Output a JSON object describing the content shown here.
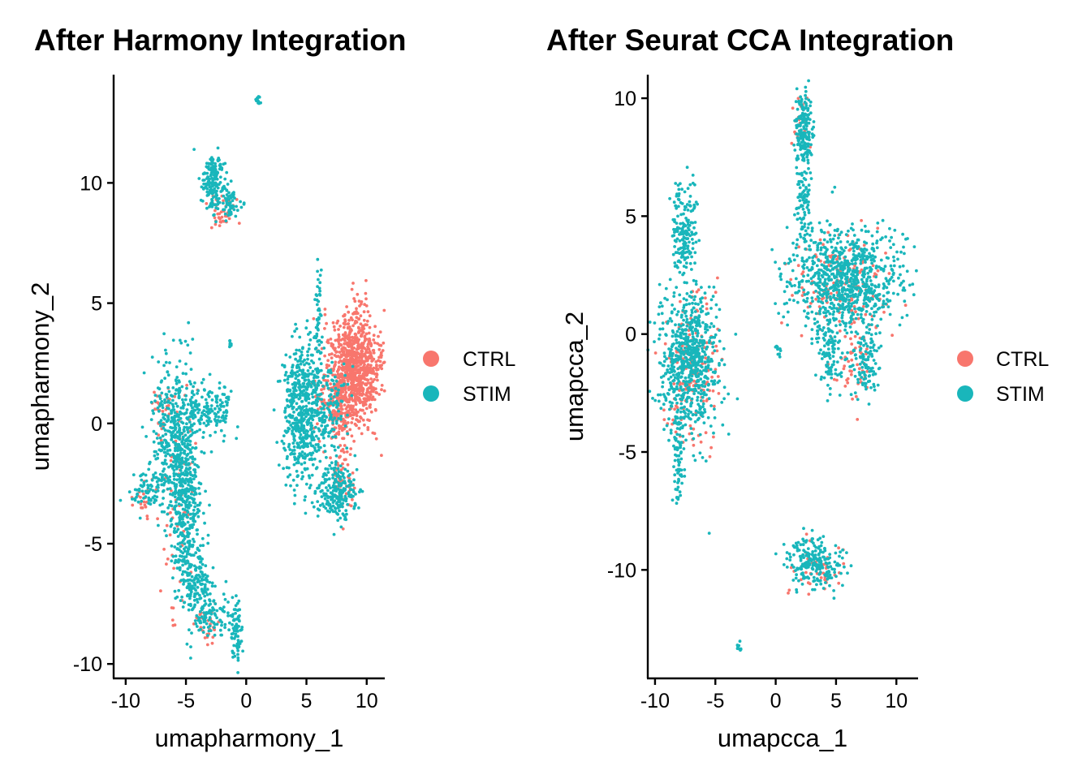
{
  "colors": {
    "CTRL": "#F8766D",
    "STIM": "#19B6BB"
  },
  "chart_data": [
    {
      "type": "scatter",
      "title": "After Harmony Integration",
      "xlabel": "umapharmony_1",
      "ylabel": "umapharmony_2",
      "xlim": [
        -11,
        11.5
      ],
      "ylim": [
        -10.6,
        14.5
      ],
      "xticks": [
        -10,
        -5,
        0,
        5,
        10
      ],
      "yticks": [
        -10,
        -5,
        0,
        5,
        10
      ],
      "xtick_labels": [
        "-10",
        "-5",
        "0",
        "5",
        "10"
      ],
      "ytick_labels": [
        "-10",
        "-5",
        "0",
        "5",
        "10"
      ],
      "legend": {
        "placement": "right",
        "entries": [
          "CTRL",
          "STIM"
        ]
      },
      "grid": false,
      "series": [
        {
          "name": "CTRL",
          "clusters": [
            {
              "cx": 9.0,
              "cy": 2.3,
              "sx": 1.1,
              "sy": 1.2,
              "n": 900
            },
            {
              "cx": 7.5,
              "cy": 0.8,
              "sx": 0.9,
              "sy": 0.8,
              "n": 160
            },
            {
              "cx": 7.9,
              "cy": -2.3,
              "sx": 0.5,
              "sy": 0.8,
              "n": 60
            },
            {
              "cx": -5.5,
              "cy": -3.0,
              "sx": 0.8,
              "sy": 2.8,
              "n": 70
            },
            {
              "cx": -1.8,
              "cy": 8.8,
              "sx": 0.7,
              "sy": 0.4,
              "n": 40
            },
            {
              "cx": -3.2,
              "cy": -8.4,
              "sx": 0.6,
              "sy": 0.4,
              "n": 30
            },
            {
              "cx": -7.0,
              "cy": 0.5,
              "sx": 0.5,
              "sy": 0.5,
              "n": 30
            },
            {
              "cx": -8.5,
              "cy": -3.0,
              "sx": 0.5,
              "sy": 0.3,
              "n": 20
            }
          ]
        },
        {
          "name": "STIM",
          "clusters": [
            {
              "cx": -6.0,
              "cy": -0.5,
              "sx": 0.9,
              "sy": 1.6,
              "n": 420
            },
            {
              "cx": -5.0,
              "cy": -3.8,
              "sx": 0.6,
              "sy": 1.8,
              "n": 380
            },
            {
              "cx": -4.2,
              "cy": -6.5,
              "sx": 0.6,
              "sy": 0.7,
              "n": 120
            },
            {
              "cx": -2.8,
              "cy": -8.0,
              "sx": 0.8,
              "sy": 0.5,
              "n": 100
            },
            {
              "cx": -0.8,
              "cy": -8.7,
              "sx": 0.25,
              "sy": 0.6,
              "n": 70
            },
            {
              "cx": -3.5,
              "cy": 0.5,
              "sx": 1.0,
              "sy": 0.5,
              "n": 110
            },
            {
              "cx": -2.0,
              "cy": 0.8,
              "sx": 0.4,
              "sy": 0.5,
              "n": 40
            },
            {
              "cx": -8.2,
              "cy": -2.8,
              "sx": 0.8,
              "sy": 0.4,
              "n": 70
            },
            {
              "cx": 4.7,
              "cy": 0.4,
              "sx": 0.8,
              "sy": 1.5,
              "n": 520
            },
            {
              "cx": 6.8,
              "cy": 0.8,
              "sx": 0.8,
              "sy": 0.9,
              "n": 140
            },
            {
              "cx": 7.5,
              "cy": -2.8,
              "sx": 0.8,
              "sy": 0.6,
              "n": 230
            },
            {
              "cx": 6.0,
              "cy": 4.3,
              "sx": 0.15,
              "sy": 1.0,
              "n": 50
            },
            {
              "cx": -2.7,
              "cy": 10.0,
              "sx": 0.5,
              "sy": 0.6,
              "n": 170
            },
            {
              "cx": -1.3,
              "cy": 9.1,
              "sx": 0.4,
              "sy": 0.3,
              "n": 60
            },
            {
              "cx": 1.0,
              "cy": 13.4,
              "sx": 0.1,
              "sy": 0.1,
              "n": 12
            },
            {
              "cx": -1.3,
              "cy": 3.3,
              "sx": 0.1,
              "sy": 0.15,
              "n": 8
            }
          ]
        }
      ]
    },
    {
      "type": "scatter",
      "title": "After Seurat CCA Integration",
      "xlabel": "umapcca_1",
      "ylabel": "umapcca_2",
      "xlim": [
        -10.6,
        11.8
      ],
      "ylim": [
        -14.6,
        11.0
      ],
      "xticks": [
        -10,
        -5,
        0,
        5,
        10
      ],
      "yticks": [
        -10,
        -5,
        0,
        5,
        10
      ],
      "xtick_labels": [
        "-10",
        "-5",
        "0",
        "5",
        "10"
      ],
      "ytick_labels": [
        "-10",
        "-5",
        "0",
        "5",
        "10"
      ],
      "legend": {
        "placement": "right",
        "entries": [
          "CTRL",
          "STIM"
        ]
      },
      "grid": false,
      "series": [
        {
          "name": "CTRL",
          "clusters": [
            {
              "cx": -7.0,
              "cy": -1.5,
              "sx": 1.3,
              "sy": 1.6,
              "n": 160
            },
            {
              "cx": 5.5,
              "cy": 2.0,
              "sx": 2.2,
              "sy": 1.1,
              "n": 160
            },
            {
              "cx": 3.5,
              "cy": -10.0,
              "sx": 1.0,
              "sy": 0.6,
              "n": 45
            },
            {
              "cx": 2.0,
              "cy": 8.8,
              "sx": 0.4,
              "sy": 0.6,
              "n": 20
            },
            {
              "cx": 6.5,
              "cy": -1.5,
              "sx": 0.8,
              "sy": 0.7,
              "n": 40
            }
          ]
        },
        {
          "name": "STIM",
          "clusters": [
            {
              "cx": -7.2,
              "cy": -1.2,
              "sx": 1.2,
              "sy": 1.5,
              "n": 700
            },
            {
              "cx": -7.6,
              "cy": 4.3,
              "sx": 0.5,
              "sy": 1.0,
              "n": 180
            },
            {
              "cx": -8.0,
              "cy": -5.5,
              "sx": 0.2,
              "sy": 1.1,
              "n": 70
            },
            {
              "cx": 5.8,
              "cy": 2.3,
              "sx": 2.3,
              "sy": 1.1,
              "n": 850
            },
            {
              "cx": 2.3,
              "cy": 8.5,
              "sx": 0.35,
              "sy": 0.8,
              "n": 180
            },
            {
              "cx": 2.3,
              "cy": 5.5,
              "sx": 0.3,
              "sy": 0.8,
              "n": 80
            },
            {
              "cx": 4.5,
              "cy": -1.0,
              "sx": 0.5,
              "sy": 0.7,
              "n": 90
            },
            {
              "cx": 7.5,
              "cy": -1.2,
              "sx": 0.6,
              "sy": 0.8,
              "n": 110
            },
            {
              "cx": 3.0,
              "cy": -9.7,
              "sx": 1.1,
              "sy": 0.55,
              "n": 220
            },
            {
              "cx": 0.2,
              "cy": -0.7,
              "sx": 0.15,
              "sy": 0.12,
              "n": 10
            },
            {
              "cx": -3.0,
              "cy": -13.3,
              "sx": 0.15,
              "sy": 0.12,
              "n": 10
            }
          ]
        }
      ]
    }
  ]
}
